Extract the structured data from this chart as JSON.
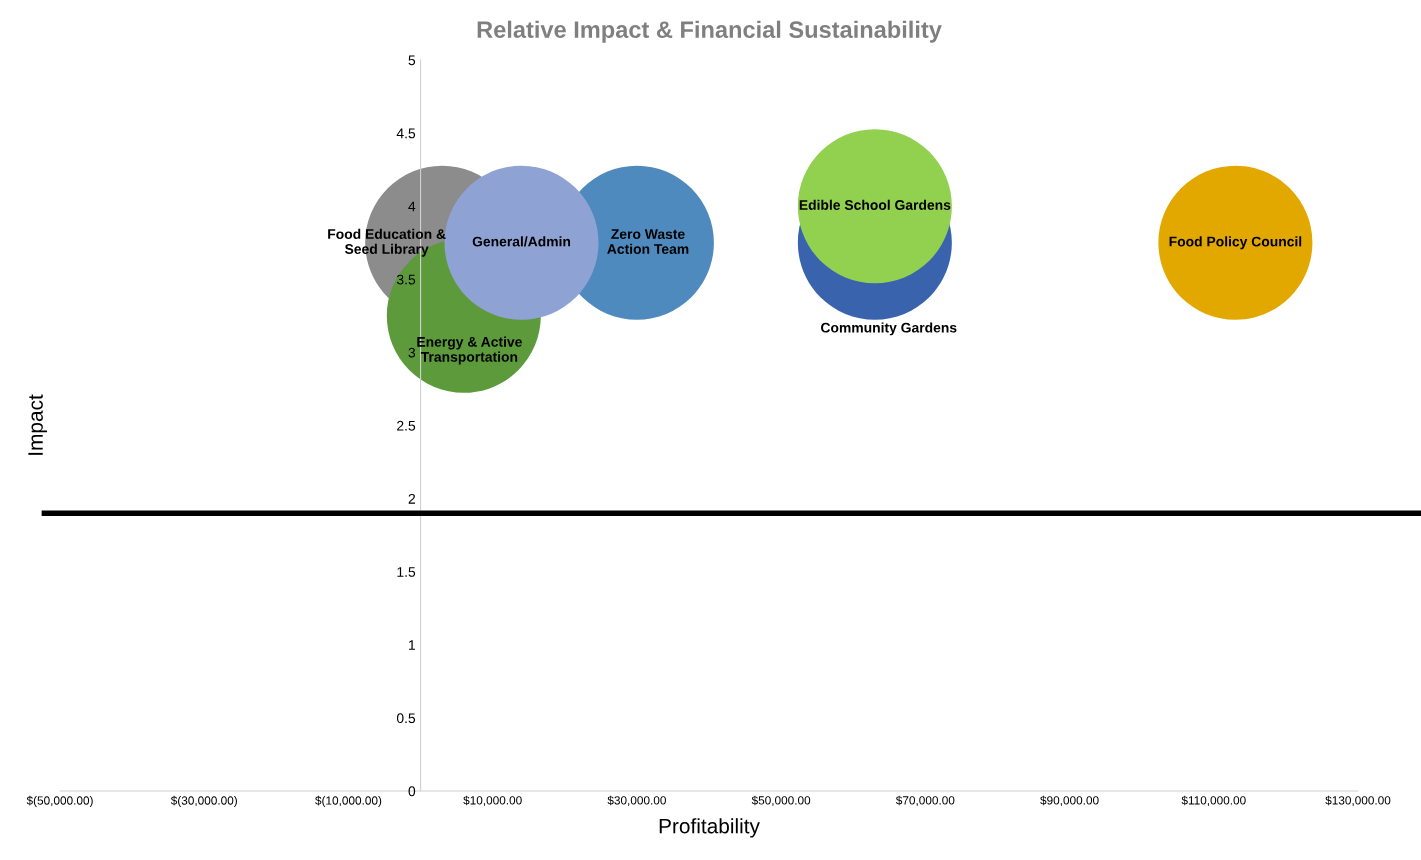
{
  "chart_data": {
    "type": "bubble",
    "title": "Relative Impact & Financial Sustainability",
    "xlabel": "Profitability",
    "ylabel": "Impact",
    "series": [
      {
        "name": "Food Policy Council",
        "color": "#e2a800",
        "x": [
          113000
        ],
        "values": [
          3.75
        ],
        "sizes": [
          1
        ]
      },
      {
        "name": "Community Gardens",
        "color": "#3a63ad",
        "x": [
          63000
        ],
        "values": [
          3.75
        ],
        "sizes": [
          1
        ]
      },
      {
        "name": "Edible School Gardens",
        "color": "#92d050",
        "x": [
          63000
        ],
        "values": [
          4.0
        ],
        "sizes": [
          1
        ]
      },
      {
        "name": "Zero Waste\nAction Team",
        "color": "#4e8abe",
        "x": [
          30000
        ],
        "values": [
          3.75
        ],
        "sizes": [
          1
        ]
      },
      {
        "name": "Food Education &\nSeed Library",
        "color": "#8c8c8c",
        "x": [
          3000
        ],
        "values": [
          3.75
        ],
        "sizes": [
          1
        ]
      },
      {
        "name": "Energy & Active\nTransportation",
        "color": "#5d9a3b",
        "x": [
          6000
        ],
        "values": [
          3.25
        ],
        "sizes": [
          1
        ]
      },
      {
        "name": "General/Admin",
        "color": "#8fa2d4",
        "x": [
          14000
        ],
        "values": [
          3.75
        ],
        "sizes": [
          1
        ]
      }
    ],
    "xlim": [
      -50000,
      130000
    ],
    "xticks": [
      {
        "value": -50000,
        "label": "$(50,000.00)"
      },
      {
        "value": -30000,
        "label": "$(30,000.00)"
      },
      {
        "value": -10000,
        "label": "$(10,000.00)"
      },
      {
        "value": 10000,
        "label": "$10,000.00"
      },
      {
        "value": 30000,
        "label": "$30,000.00"
      },
      {
        "value": 50000,
        "label": "$50,000.00"
      },
      {
        "value": 70000,
        "label": "$70,000.00"
      },
      {
        "value": 90000,
        "label": "$90,000.00"
      },
      {
        "value": 110000,
        "label": "$110,000.00"
      },
      {
        "value": 130000,
        "label": "$130,000.00"
      }
    ],
    "ylim": [
      0,
      5
    ],
    "yticks": [
      0,
      0.5,
      1,
      1.5,
      2,
      2.5,
      3,
      3.5,
      4,
      4.5,
      5
    ],
    "ref_lines": [
      {
        "axis": "y",
        "value": 1.9,
        "color": "#000000"
      }
    ],
    "grid": false,
    "legend": false
  }
}
